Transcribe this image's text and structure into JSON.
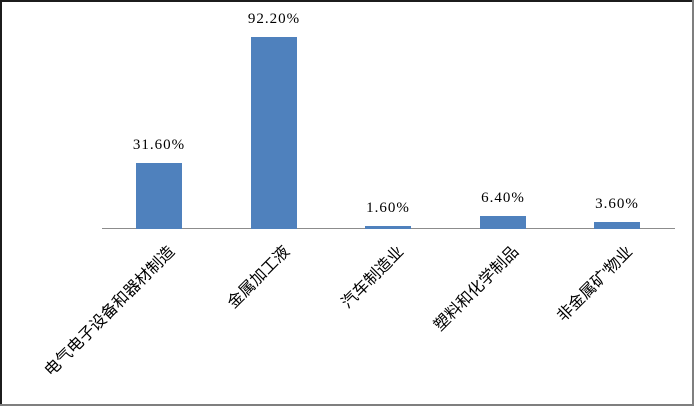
{
  "chart_data": {
    "type": "bar",
    "title": "",
    "xlabel": "",
    "ylabel": "",
    "categories": [
      "电气电子设备和器材制造",
      "金属加工液",
      "汽车制造业",
      "塑料和化学制品",
      "非金属矿'物业"
    ],
    "values": [
      31.6,
      92.2,
      1.6,
      6.4,
      3.6
    ],
    "value_labels": [
      "31.60%",
      "92.20%",
      "1.60%",
      "6.40%",
      "3.60%"
    ],
    "ylim": [
      0,
      100
    ],
    "grid": false,
    "legend": null,
    "bar_color": "#4F81BD",
    "axis_color": "#8C8C8C",
    "label_color": "#000000"
  }
}
